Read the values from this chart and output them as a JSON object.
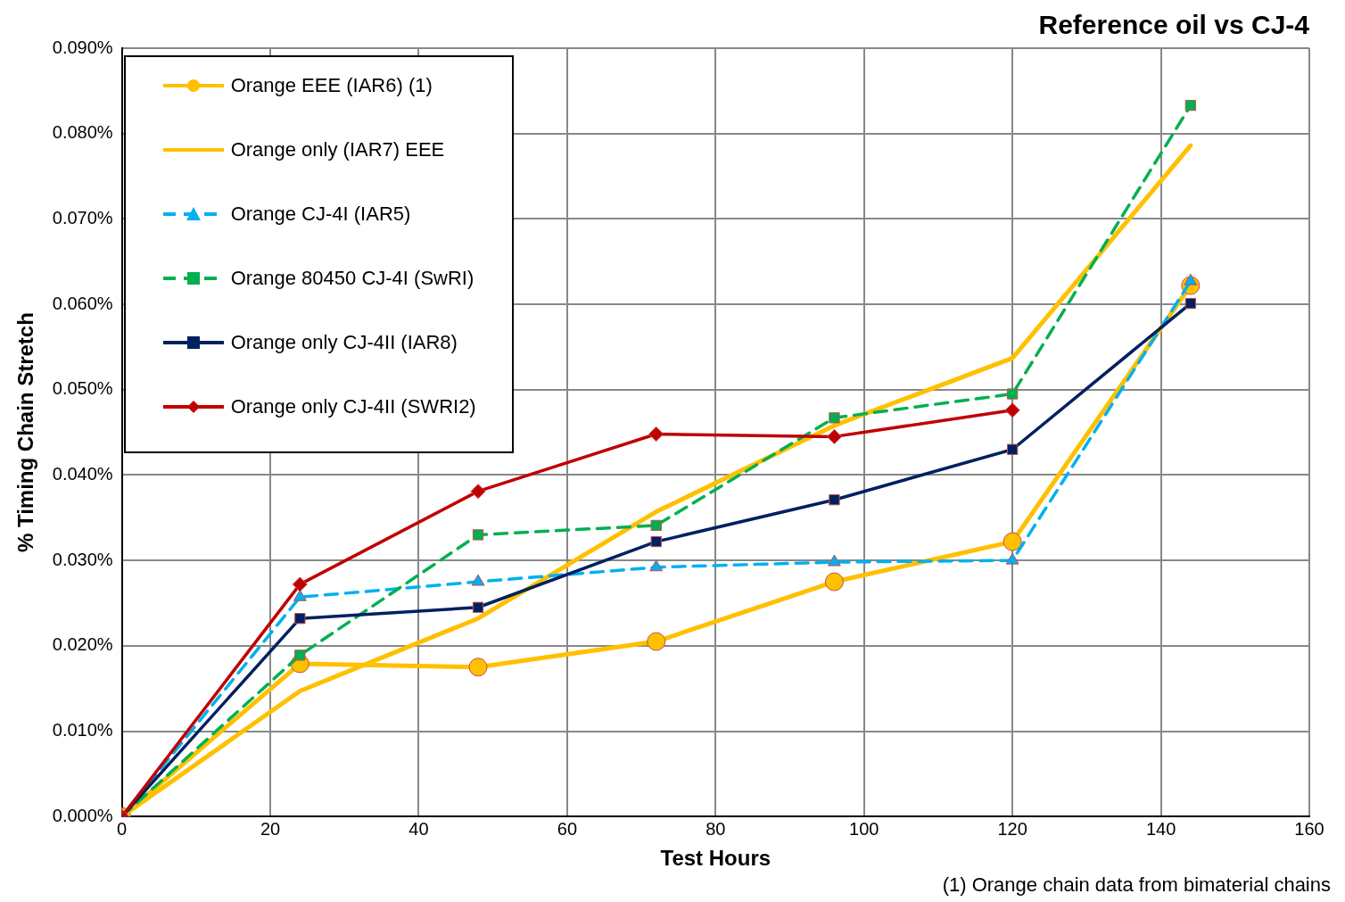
{
  "chart_data": {
    "type": "line",
    "title": "Reference oil vs CJ-4",
    "xlabel": "Test Hours",
    "ylabel": "% Timing Chain Stretch",
    "annotations": [
      "(1) Orange chain data from bimaterial chains"
    ],
    "x": [
      0,
      24,
      48,
      72,
      96,
      120,
      144
    ],
    "xlim": [
      0,
      160
    ],
    "xticks": [
      0,
      20,
      40,
      60,
      80,
      100,
      120,
      140,
      160
    ],
    "ylim": [
      0,
      0.09
    ],
    "yticks": [
      {
        "value": 0,
        "label": "0.000%"
      },
      {
        "value": 0.01,
        "label": "0.010%"
      },
      {
        "value": 0.02,
        "label": "0.020%"
      },
      {
        "value": 0.03,
        "label": "0.030%"
      },
      {
        "value": 0.04,
        "label": "0.040%"
      },
      {
        "value": 0.05,
        "label": "0.050%"
      },
      {
        "value": 0.06,
        "label": "0.060%"
      },
      {
        "value": 0.07,
        "label": "0.070%"
      },
      {
        "value": 0.08,
        "label": "0.080%"
      },
      {
        "value": 0.09,
        "label": "0.090%"
      }
    ],
    "grid": true,
    "legend": "top left",
    "series": [
      {
        "name": "Orange EEE (IAR6) (1)",
        "color": "#ffc000",
        "marker": "circle",
        "line_style": "solid",
        "values": [
          0,
          0.0179,
          0.0175,
          0.0205,
          0.0275,
          0.0322,
          0.0622
        ]
      },
      {
        "name": "Orange only (IAR7) EEE",
        "color": "#ffc000",
        "marker": "none",
        "line_style": "solid",
        "values": [
          0,
          0.0147,
          0.0232,
          0.0357,
          0.0458,
          0.0537,
          0.0786
        ]
      },
      {
        "name": "Orange CJ-4I (IAR5)",
        "color": "#00b0f0",
        "marker": "triangle",
        "line_style": "dashed",
        "values": [
          0,
          0.0257,
          0.0275,
          0.0292,
          0.0298,
          0.03,
          0.0627
        ]
      },
      {
        "name": "Orange 80450 CJ-4I (SwRI)",
        "color": "#00b050",
        "marker": "square",
        "line_style": "dashed",
        "values": [
          0,
          0.0189,
          0.033,
          0.0341,
          0.0467,
          0.0495,
          0.0833
        ]
      },
      {
        "name": "Orange only CJ-4II (IAR8)",
        "color": "#002060",
        "marker": "square",
        "line_style": "solid",
        "values": [
          0,
          0.0232,
          0.0245,
          0.0322,
          0.0371,
          0.043,
          0.0601
        ]
      },
      {
        "name": "Orange only CJ-4II (SWRI2)",
        "color": "#c00000",
        "marker": "diamond",
        "line_style": "solid",
        "values": [
          0,
          0.0272,
          0.0381,
          0.0448,
          0.0445,
          0.0476,
          null
        ]
      }
    ]
  }
}
